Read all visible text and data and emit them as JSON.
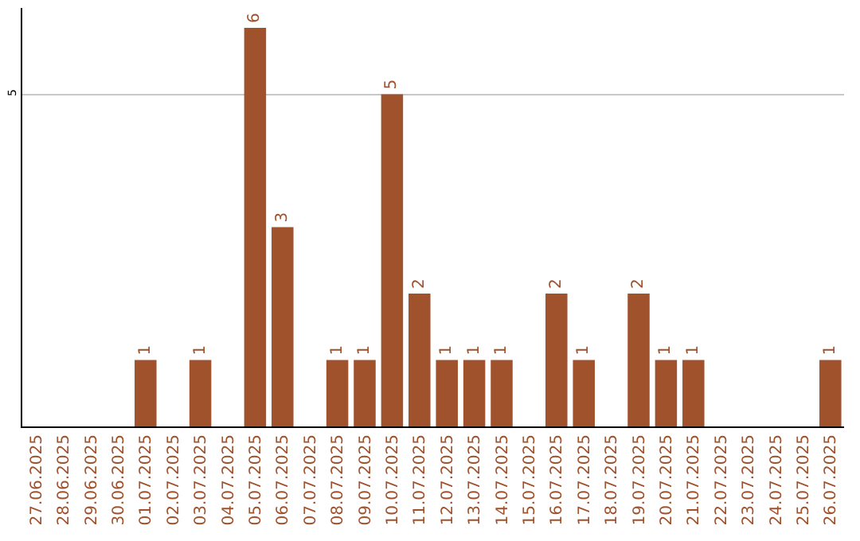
{
  "chart_data": {
    "type": "bar",
    "categories": [
      "27.06.2025",
      "28.06.2025",
      "29.06.2025",
      "30.06.2025",
      "01.07.2025",
      "02.07.2025",
      "03.07.2025",
      "04.07.2025",
      "05.07.2025",
      "06.07.2025",
      "07.07.2025",
      "08.07.2025",
      "09.07.2025",
      "10.07.2025",
      "11.07.2025",
      "12.07.2025",
      "13.07.2025",
      "14.07.2025",
      "15.07.2025",
      "16.07.2025",
      "17.07.2025",
      "18.07.2025",
      "19.07.2025",
      "20.07.2025",
      "21.07.2025",
      "22.07.2025",
      "23.07.2025",
      "24.07.2025",
      "25.07.2025",
      "26.07.2025"
    ],
    "values": [
      0,
      0,
      0,
      0,
      1,
      0,
      1,
      0,
      6,
      3,
      0,
      1,
      1,
      5,
      2,
      1,
      1,
      1,
      0,
      2,
      1,
      0,
      2,
      1,
      1,
      0,
      0,
      0,
      0,
      1
    ],
    "value_labels": [
      null,
      null,
      null,
      null,
      "1",
      null,
      "1",
      null,
      "6",
      "3",
      null,
      "1",
      "1",
      "5",
      "2",
      "1",
      "1",
      "1",
      null,
      "2",
      "1",
      null,
      "2",
      "1",
      "1",
      null,
      null,
      null,
      null,
      "1"
    ],
    "color": "#a0522d",
    "ylim": [
      0,
      6.3
    ],
    "yticks": [
      5
    ],
    "grid": "y"
  }
}
